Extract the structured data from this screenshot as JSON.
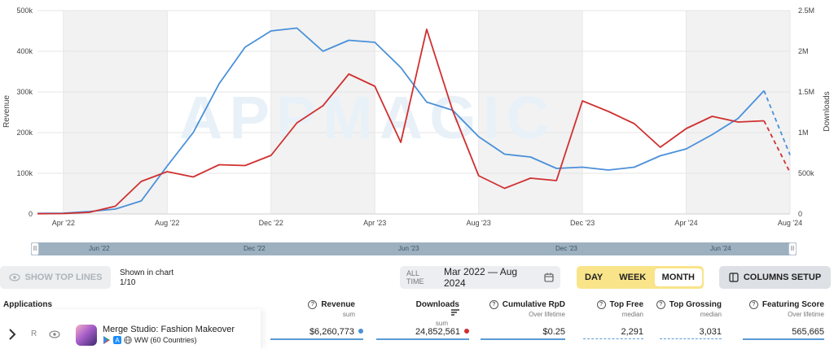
{
  "chart_data": {
    "type": "line",
    "x": [
      "Mar '22",
      "Apr '22",
      "May '22",
      "Jun '22",
      "Jul '22",
      "Aug '22",
      "Sep '22",
      "Oct '22",
      "Nov '22",
      "Dec '22",
      "Jan '23",
      "Feb '23",
      "Mar '23",
      "Apr '23",
      "May '23",
      "Jun '23",
      "Jul '23",
      "Aug '23",
      "Sep '23",
      "Oct '23",
      "Nov '23",
      "Dec '23",
      "Jan '24",
      "Feb '24",
      "Mar '24",
      "Apr '24",
      "May '24",
      "Jun '24",
      "Jul '24",
      "Aug '24"
    ],
    "series": [
      {
        "name": "Revenue",
        "color": "#4a90d9",
        "axis": "left",
        "values": [
          1500,
          2000,
          6000,
          12000,
          32000,
          118000,
          200000,
          320000,
          410000,
          450000,
          457000,
          400000,
          427000,
          422000,
          360000,
          275000,
          255000,
          190000,
          147000,
          140000,
          112000,
          115000,
          108000,
          115000,
          143000,
          160000,
          195000,
          235000,
          303000,
          145000
        ],
        "projected_from_index": 28
      },
      {
        "name": "Downloads",
        "color": "#d03030",
        "axis": "right",
        "values": [
          3000,
          5000,
          20000,
          95000,
          400000,
          520000,
          455000,
          605000,
          595000,
          720000,
          1120000,
          1330000,
          1720000,
          1570000,
          880000,
          2270000,
          1270000,
          470000,
          315000,
          440000,
          410000,
          1390000,
          1260000,
          1110000,
          820000,
          1050000,
          1200000,
          1130000,
          1145000,
          510000
        ],
        "projected_from_index": 28
      }
    ],
    "yleft": {
      "label": "Revenue",
      "ticks": [
        "0",
        "100k",
        "200k",
        "300k",
        "400k",
        "500k"
      ],
      "range": [
        0,
        500000
      ]
    },
    "yright": {
      "label": "Downloads",
      "ticks": [
        "0",
        "500k",
        "1M",
        "1.5M",
        "2M",
        "2.5M"
      ],
      "range": [
        0,
        2500000
      ]
    },
    "xticks": [
      "Apr '22",
      "Aug '22",
      "Dec '22",
      "Apr '23",
      "Aug '23",
      "Dec '23",
      "Apr '24",
      "Aug '24"
    ],
    "watermark": "APPMAGIC",
    "grid": true
  },
  "slider": {
    "labels": [
      "Jun '22",
      "Dec '22",
      "Jun '23",
      "Dec '23",
      "Jun '24"
    ],
    "handle_glyph": "II"
  },
  "controls": {
    "show_top_lines": "SHOW TOP LINES",
    "shown_line1": "Shown in chart",
    "shown_line2": "1/10",
    "all_time": "ALL TIME",
    "date_range": "Mar 2022 — Aug 2024",
    "period_day": "DAY",
    "period_week": "WEEK",
    "period_month": "MONTH",
    "columns_setup": "COLUMNS SETUP"
  },
  "table": {
    "applications_header": "Applications",
    "columns": [
      {
        "title": "Revenue",
        "sub": "sum"
      },
      {
        "title": "Downloads",
        "sub": "sum"
      },
      {
        "title": "Cumulative RpD",
        "sub": "Over lifetime"
      },
      {
        "title": "Top Free",
        "sub": "median"
      },
      {
        "title": "Top Grossing",
        "sub": "median"
      },
      {
        "title": "Featuring Score",
        "sub": "Over lifetime"
      }
    ],
    "row": {
      "rank_letter": "R",
      "app_name": "Merge Studio: Fashion Makeover",
      "region": "WW (60 Countries)",
      "revenue": "$6,260,773",
      "downloads": "24,852,561",
      "rpd": "$0.25",
      "top_free": "2,291",
      "top_grossing": "3,031",
      "featuring": "565,665"
    }
  }
}
